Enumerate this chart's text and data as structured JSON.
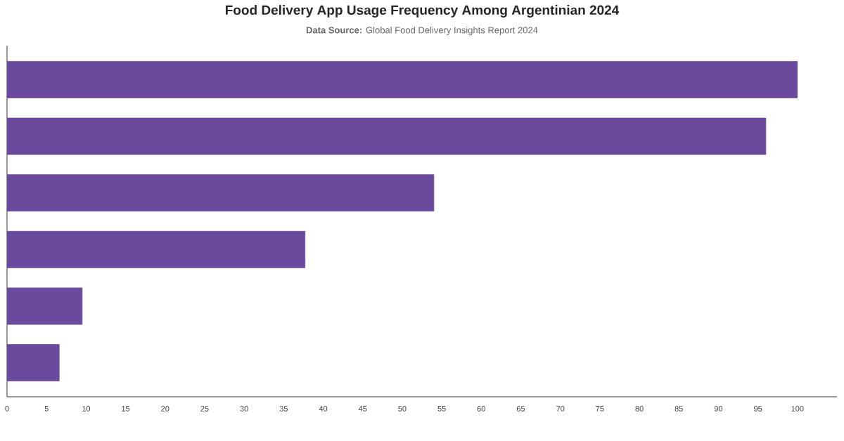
{
  "chart_data": {
    "type": "bar",
    "orientation": "horizontal",
    "title": "Food Delivery App Usage Frequency Among Argentinian 2024",
    "subtitle": "**Data Source:** Global Food Delivery Insights Report 2024",
    "categories": [
      null,
      null,
      null,
      null,
      null,
      null
    ],
    "values": [
      100,
      96,
      54,
      37.7,
      9.5,
      6.6
    ],
    "color": "#6a4a9c",
    "xlim": [
      0,
      105
    ],
    "xticks": [
      0,
      5,
      10,
      15,
      20,
      25,
      30,
      35,
      40,
      45,
      50,
      55,
      60,
      65,
      70,
      75,
      80,
      85,
      90,
      95,
      100
    ],
    "grid": false
  }
}
